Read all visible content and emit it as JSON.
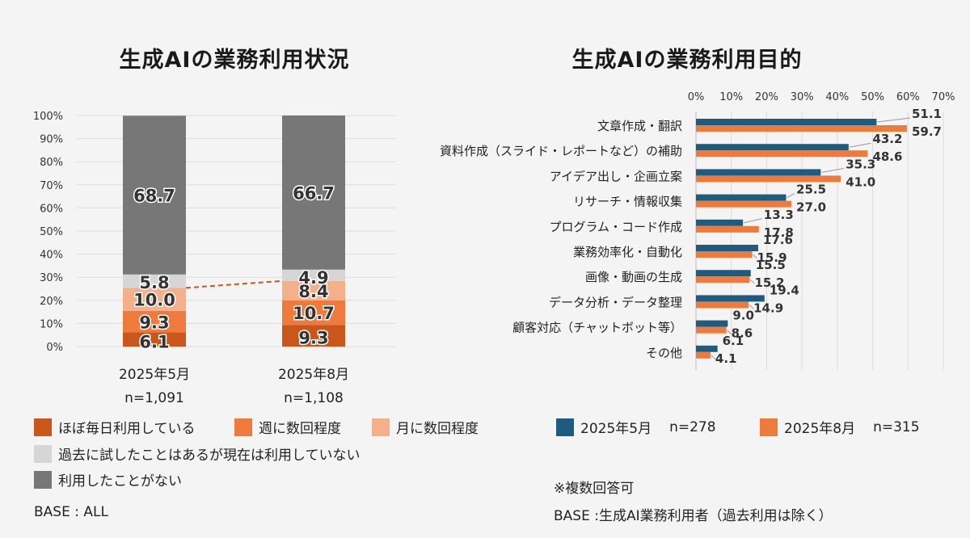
{
  "chart_data": [
    {
      "type": "bar",
      "stacked": true,
      "title": "生成AIの業務利用状況",
      "categories": [
        "2025年5月",
        "2025年8月"
      ],
      "category_n": [
        "n=1,091",
        "n=1,108"
      ],
      "ylim": [
        0,
        100
      ],
      "yticks": [
        "0%",
        "10%",
        "20%",
        "30%",
        "40%",
        "50%",
        "60%",
        "70%",
        "80%",
        "90%",
        "100%"
      ],
      "series": [
        {
          "name": "ほぼ毎日利用している",
          "values": [
            6.1,
            9.3
          ],
          "color": "#c9561b",
          "labels": [
            "6.1",
            "9.3"
          ]
        },
        {
          "name": "週に数回程度",
          "values": [
            9.3,
            10.7
          ],
          "color": "#ee7a3c",
          "labels": [
            "9.3",
            "10.7"
          ]
        },
        {
          "name": "月に数回程度",
          "values": [
            10.0,
            8.4
          ],
          "color": "#f3b08a",
          "labels": [
            "10.0",
            "8.4"
          ]
        },
        {
          "name": "過去に試したことはあるが現在は利用していない",
          "values": [
            5.8,
            4.9
          ],
          "color": "#d6d6d6",
          "labels": [
            "5.8",
            "4.9"
          ]
        },
        {
          "name": "利用したことがない",
          "values": [
            68.7,
            66.7
          ],
          "color": "#777777",
          "labels": [
            "68.7",
            "66.7"
          ]
        }
      ],
      "note": "BASE : ALL"
    },
    {
      "type": "bar",
      "orientation": "horizontal",
      "title": "生成AIの業務利用目的",
      "categories": [
        "文章作成・翻訳",
        "資料作成（スライド・レポートなど）の補助",
        "アイデア出し・企画立案",
        "リサーチ・情報収集",
        "プログラム・コード作成",
        "業務効率化・自動化",
        "画像・動画の生成",
        "データ分析・データ整理",
        "顧客対応（チャットボット等）",
        "その他"
      ],
      "xlim": [
        0,
        70
      ],
      "xticks": [
        "0%",
        "10%",
        "20%",
        "30%",
        "40%",
        "50%",
        "60%",
        "70%"
      ],
      "series": [
        {
          "name": "2025年5月",
          "n": "n=278",
          "color": "#1f5b7e",
          "values": [
            51.1,
            43.2,
            35.3,
            25.5,
            13.3,
            17.6,
            15.5,
            19.4,
            9.0,
            6.1
          ],
          "labels": [
            "51.1",
            "43.2",
            "35.3",
            "25.5",
            "13.3",
            "17.6",
            "15.5",
            "19.4",
            "9.0",
            "6.1"
          ]
        },
        {
          "name": "2025年8月",
          "n": "n=315",
          "color": "#ee7a3c",
          "values": [
            59.7,
            48.6,
            41.0,
            27.0,
            17.8,
            15.9,
            15.2,
            14.9,
            8.6,
            4.1
          ],
          "labels": [
            "59.7",
            "48.6",
            "41.0",
            "27.0",
            "17.8",
            "15.9",
            "15.2",
            "14.9",
            "8.6",
            "4.1"
          ]
        }
      ],
      "note1": "※複数回答可",
      "note2": "BASE :生成AI業務利用者（過去利用は除く）"
    }
  ]
}
